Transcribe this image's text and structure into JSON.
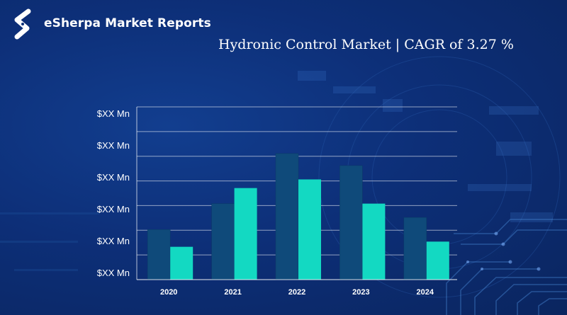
{
  "brand": {
    "name": "eSherpa Market Reports",
    "logo_icon": "esherpa-s-logo-icon"
  },
  "headline": "Hydronic Control Market | CAGR of 3.27 %",
  "colors": {
    "background": "#0d2f78",
    "series_a": "#0f4a7a",
    "series_b": "#13d9c2",
    "gridline": "#ffffff"
  },
  "chart_data": {
    "type": "bar",
    "title": "",
    "xlabel": "",
    "ylabel": "",
    "categories": [
      "2020",
      "2021",
      "2022",
      "2023",
      "2024"
    ],
    "y_tick_labels": [
      "$XX Mn",
      "$XX Mn",
      "$XX Mn",
      "$XX Mn",
      "$XX Mn",
      "$XX Mn"
    ],
    "ylim": [
      0,
      100
    ],
    "grid": true,
    "legend": "none",
    "series": [
      {
        "values": [
          29,
          44,
          73,
          66,
          36
        ]
      },
      {
        "values": [
          19,
          53,
          58,
          44,
          22
        ]
      }
    ]
  }
}
